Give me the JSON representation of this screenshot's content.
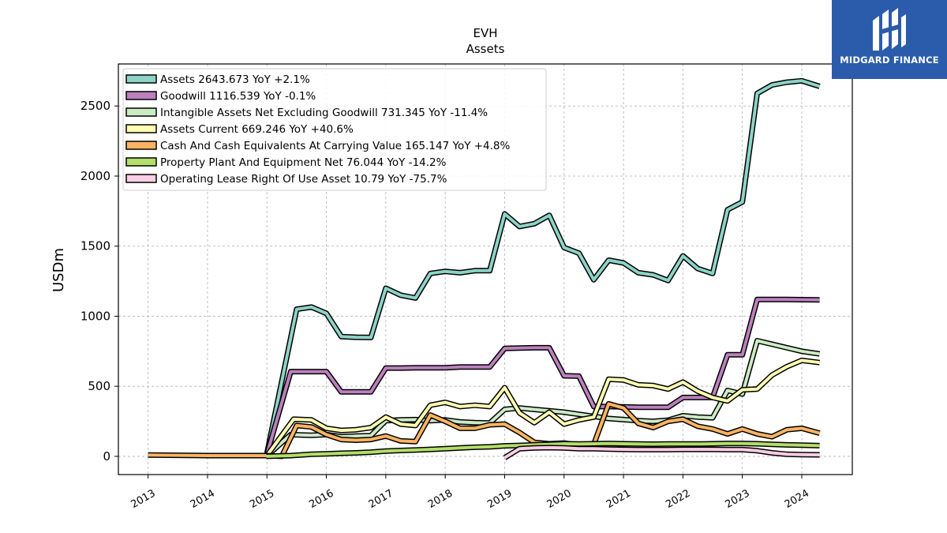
{
  "logo": {
    "text": "MIDGARD FINANCE"
  },
  "chart_data": {
    "type": "line",
    "title": "EVH",
    "subtitle": "Assets",
    "ylabel": "USDm",
    "xlabel": "",
    "xlim": [
      2012.5,
      2024.85
    ],
    "ylim": [
      -130,
      2800
    ],
    "xticks": [
      "2013",
      "2014",
      "2015",
      "2016",
      "2017",
      "2018",
      "2019",
      "2020",
      "2021",
      "2022",
      "2023",
      "2024"
    ],
    "yticks": [
      0,
      500,
      1000,
      1500,
      2000,
      2500
    ],
    "grid": true,
    "legend_position": "top-left",
    "series": [
      {
        "name": "Assets",
        "legend": "Assets  2643.673 YoY +2.1%",
        "color": "#8dd3c7",
        "points": [
          [
            2014.99,
            0
          ],
          [
            2015.5,
            1050
          ],
          [
            2015.75,
            1065
          ],
          [
            2016.0,
            1020
          ],
          [
            2016.25,
            855
          ],
          [
            2016.5,
            850
          ],
          [
            2016.75,
            848
          ],
          [
            2017.0,
            1200
          ],
          [
            2017.25,
            1150
          ],
          [
            2017.5,
            1130
          ],
          [
            2017.75,
            1305
          ],
          [
            2018.0,
            1320
          ],
          [
            2018.25,
            1310
          ],
          [
            2018.5,
            1325
          ],
          [
            2018.75,
            1325
          ],
          [
            2019.0,
            1730
          ],
          [
            2019.25,
            1640
          ],
          [
            2019.5,
            1660
          ],
          [
            2019.75,
            1720
          ],
          [
            2020.0,
            1490
          ],
          [
            2020.25,
            1450
          ],
          [
            2020.5,
            1260
          ],
          [
            2020.75,
            1400
          ],
          [
            2021.0,
            1380
          ],
          [
            2021.25,
            1310
          ],
          [
            2021.5,
            1295
          ],
          [
            2021.75,
            1255
          ],
          [
            2022.0,
            1430
          ],
          [
            2022.25,
            1340
          ],
          [
            2022.5,
            1305
          ],
          [
            2022.75,
            1760
          ],
          [
            2023.0,
            1815
          ],
          [
            2023.25,
            2590
          ],
          [
            2023.5,
            2650
          ],
          [
            2023.75,
            2670
          ],
          [
            2024.0,
            2680
          ],
          [
            2024.3,
            2640
          ]
        ]
      },
      {
        "name": "Goodwill",
        "legend": "Goodwill  1116.539 YoY -0.1%",
        "color": "#bc80bd",
        "points": [
          [
            2014.99,
            0
          ],
          [
            2015.4,
            605
          ],
          [
            2015.75,
            605
          ],
          [
            2016.0,
            605
          ],
          [
            2016.25,
            460
          ],
          [
            2016.5,
            460
          ],
          [
            2016.75,
            460
          ],
          [
            2017.0,
            630
          ],
          [
            2017.25,
            630
          ],
          [
            2017.5,
            632
          ],
          [
            2017.75,
            632
          ],
          [
            2018.0,
            632
          ],
          [
            2018.25,
            638
          ],
          [
            2018.5,
            638
          ],
          [
            2018.75,
            638
          ],
          [
            2019.0,
            770
          ],
          [
            2019.25,
            773
          ],
          [
            2019.5,
            775
          ],
          [
            2019.75,
            775
          ],
          [
            2020.0,
            575
          ],
          [
            2020.25,
            572
          ],
          [
            2020.5,
            355
          ],
          [
            2020.75,
            355
          ],
          [
            2021.0,
            353
          ],
          [
            2021.25,
            350
          ],
          [
            2021.5,
            350
          ],
          [
            2021.75,
            350
          ],
          [
            2022.0,
            420
          ],
          [
            2022.25,
            420
          ],
          [
            2022.5,
            420
          ],
          [
            2022.75,
            725
          ],
          [
            2023.0,
            725
          ],
          [
            2023.25,
            1120
          ],
          [
            2023.5,
            1120
          ],
          [
            2023.75,
            1120
          ],
          [
            2024.0,
            1118
          ],
          [
            2024.3,
            1117
          ]
        ]
      },
      {
        "name": "Intangible Assets Net Excluding Goodwill",
        "legend": "Intangible Assets Net Excluding Goodwill  731.345 YoY -11.4%",
        "color": "#ccebc5",
        "points": [
          [
            2014.99,
            0
          ],
          [
            2015.4,
            155
          ],
          [
            2015.75,
            150
          ],
          [
            2016.0,
            155
          ],
          [
            2016.25,
            140
          ],
          [
            2016.5,
            145
          ],
          [
            2016.75,
            148
          ],
          [
            2017.0,
            255
          ],
          [
            2017.25,
            260
          ],
          [
            2017.5,
            262
          ],
          [
            2017.75,
            255
          ],
          [
            2018.0,
            260
          ],
          [
            2018.25,
            245
          ],
          [
            2018.5,
            240
          ],
          [
            2018.75,
            238
          ],
          [
            2019.0,
            335
          ],
          [
            2019.25,
            345
          ],
          [
            2019.5,
            335
          ],
          [
            2019.75,
            325
          ],
          [
            2020.0,
            315
          ],
          [
            2020.25,
            300
          ],
          [
            2020.5,
            285
          ],
          [
            2020.75,
            270
          ],
          [
            2021.0,
            262
          ],
          [
            2021.25,
            255
          ],
          [
            2021.5,
            250
          ],
          [
            2021.75,
            258
          ],
          [
            2022.0,
            290
          ],
          [
            2022.25,
            280
          ],
          [
            2022.5,
            275
          ],
          [
            2022.75,
            470
          ],
          [
            2023.0,
            445
          ],
          [
            2023.25,
            825
          ],
          [
            2023.5,
            800
          ],
          [
            2023.75,
            775
          ],
          [
            2024.0,
            750
          ],
          [
            2024.3,
            731
          ]
        ]
      },
      {
        "name": "Assets Current",
        "legend": "Assets Current  669.246 YoY +40.6%",
        "color": "#ffffb3",
        "points": [
          [
            2014.99,
            0
          ],
          [
            2015.45,
            265
          ],
          [
            2015.75,
            260
          ],
          [
            2016.0,
            200
          ],
          [
            2016.25,
            185
          ],
          [
            2016.5,
            190
          ],
          [
            2016.75,
            205
          ],
          [
            2017.0,
            280
          ],
          [
            2017.25,
            230
          ],
          [
            2017.5,
            220
          ],
          [
            2017.75,
            365
          ],
          [
            2018.0,
            385
          ],
          [
            2018.25,
            355
          ],
          [
            2018.5,
            365
          ],
          [
            2018.75,
            355
          ],
          [
            2019.0,
            490
          ],
          [
            2019.25,
            310
          ],
          [
            2019.5,
            240
          ],
          [
            2019.75,
            315
          ],
          [
            2020.0,
            230
          ],
          [
            2020.25,
            260
          ],
          [
            2020.5,
            280
          ],
          [
            2020.75,
            550
          ],
          [
            2021.0,
            545
          ],
          [
            2021.25,
            510
          ],
          [
            2021.5,
            505
          ],
          [
            2021.75,
            480
          ],
          [
            2022.0,
            530
          ],
          [
            2022.25,
            465
          ],
          [
            2022.5,
            420
          ],
          [
            2022.75,
            395
          ],
          [
            2023.0,
            475
          ],
          [
            2023.25,
            480
          ],
          [
            2023.5,
            580
          ],
          [
            2023.75,
            640
          ],
          [
            2024.0,
            685
          ],
          [
            2024.3,
            669
          ]
        ]
      },
      {
        "name": "Cash And Cash Equivalents At Carrying Value",
        "legend": "Cash And Cash Equivalents At Carrying Value  165.147 YoY +4.8%",
        "color": "#fdb462",
        "points": [
          [
            2013.0,
            10
          ],
          [
            2014.0,
            5
          ],
          [
            2014.99,
            5
          ],
          [
            2015.25,
            0
          ],
          [
            2015.5,
            220
          ],
          [
            2015.75,
            210
          ],
          [
            2016.0,
            155
          ],
          [
            2016.25,
            120
          ],
          [
            2016.5,
            115
          ],
          [
            2016.75,
            120
          ],
          [
            2017.0,
            145
          ],
          [
            2017.25,
            110
          ],
          [
            2017.5,
            105
          ],
          [
            2017.75,
            295
          ],
          [
            2018.0,
            250
          ],
          [
            2018.25,
            200
          ],
          [
            2018.5,
            200
          ],
          [
            2018.75,
            225
          ],
          [
            2019.0,
            230
          ],
          [
            2019.25,
            170
          ],
          [
            2019.5,
            100
          ],
          [
            2019.75,
            90
          ],
          [
            2020.0,
            95
          ],
          [
            2020.25,
            80
          ],
          [
            2020.5,
            85
          ],
          [
            2020.75,
            375
          ],
          [
            2021.0,
            345
          ],
          [
            2021.25,
            235
          ],
          [
            2021.5,
            205
          ],
          [
            2021.75,
            250
          ],
          [
            2022.0,
            265
          ],
          [
            2022.25,
            215
          ],
          [
            2022.5,
            195
          ],
          [
            2022.75,
            160
          ],
          [
            2023.0,
            195
          ],
          [
            2023.25,
            160
          ],
          [
            2023.5,
            140
          ],
          [
            2023.75,
            190
          ],
          [
            2024.0,
            200
          ],
          [
            2024.3,
            165
          ]
        ]
      },
      {
        "name": "Property Plant And Equipment Net",
        "legend": "Property Plant And Equipment Net  76.044 YoY -14.2%",
        "color": "#b3de69",
        "points": [
          [
            2014.99,
            0
          ],
          [
            2015.4,
            5
          ],
          [
            2015.75,
            15
          ],
          [
            2016.0,
            18
          ],
          [
            2016.25,
            22
          ],
          [
            2016.5,
            25
          ],
          [
            2016.75,
            30
          ],
          [
            2017.0,
            38
          ],
          [
            2017.25,
            42
          ],
          [
            2017.5,
            45
          ],
          [
            2017.75,
            50
          ],
          [
            2018.0,
            55
          ],
          [
            2018.25,
            60
          ],
          [
            2018.5,
            65
          ],
          [
            2018.75,
            68
          ],
          [
            2019.0,
            75
          ],
          [
            2019.25,
            78
          ],
          [
            2019.5,
            82
          ],
          [
            2019.75,
            85
          ],
          [
            2020.0,
            90
          ],
          [
            2020.25,
            88
          ],
          [
            2020.5,
            90
          ],
          [
            2020.75,
            92
          ],
          [
            2021.0,
            90
          ],
          [
            2021.25,
            88
          ],
          [
            2021.5,
            87
          ],
          [
            2021.75,
            88
          ],
          [
            2022.0,
            88
          ],
          [
            2022.25,
            88
          ],
          [
            2022.5,
            90
          ],
          [
            2022.75,
            92
          ],
          [
            2023.0,
            92
          ],
          [
            2023.25,
            90
          ],
          [
            2023.5,
            85
          ],
          [
            2023.75,
            82
          ],
          [
            2024.0,
            80
          ],
          [
            2024.3,
            76
          ]
        ]
      },
      {
        "name": "Operating Lease Right Of Use Asset",
        "legend": "Operating Lease Right Of Use Asset  10.79 YoY -75.7%",
        "color": "#fccde5",
        "points": [
          [
            2019.0,
            -10
          ],
          [
            2019.25,
            55
          ],
          [
            2019.5,
            60
          ],
          [
            2019.75,
            62
          ],
          [
            2020.0,
            60
          ],
          [
            2020.25,
            55
          ],
          [
            2020.5,
            55
          ],
          [
            2020.75,
            52
          ],
          [
            2021.0,
            50
          ],
          [
            2021.25,
            48
          ],
          [
            2021.5,
            48
          ],
          [
            2021.75,
            48
          ],
          [
            2022.0,
            50
          ],
          [
            2022.25,
            50
          ],
          [
            2022.5,
            50
          ],
          [
            2022.75,
            48
          ],
          [
            2023.0,
            48
          ],
          [
            2023.25,
            40
          ],
          [
            2023.5,
            25
          ],
          [
            2023.75,
            15
          ],
          [
            2024.0,
            12
          ],
          [
            2024.3,
            11
          ]
        ]
      }
    ]
  }
}
